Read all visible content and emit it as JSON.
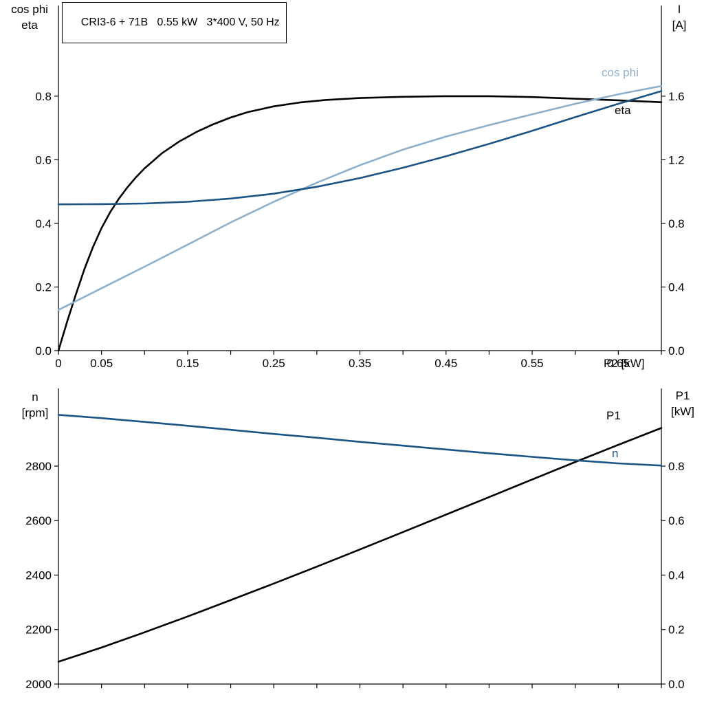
{
  "colors": {
    "curve_black": "#000000",
    "curve_dark_blue": "#1b5484",
    "curve_light_blue": "#8cafcb",
    "axis": "#000000",
    "text": "#000000"
  },
  "chart_data": [
    {
      "type": "line",
      "title": "CRI3-6 + 71B   0.55 kW   3*400 V, 50 Hz",
      "grid": false,
      "legend": "curve labels inline",
      "x_axis": {
        "label": "P2 [kW]",
        "min": 0,
        "max": 0.7,
        "tick_step": 0.05,
        "tick_labels": [
          {
            "v": 0,
            "t": "0"
          },
          {
            "v": 0.05,
            "t": "0.05"
          },
          {
            "v": 0.15,
            "t": "0.15"
          },
          {
            "v": 0.25,
            "t": "0.25"
          },
          {
            "v": 0.35,
            "t": "0.35"
          },
          {
            "v": 0.45,
            "t": "0.45"
          },
          {
            "v": 0.55,
            "t": "0.55"
          },
          {
            "v": 0.65,
            "t": "0.65"
          }
        ]
      },
      "left_axis": {
        "title_lines": [
          "cos phi",
          "eta"
        ],
        "min": 0,
        "max": 1.085,
        "tick_labels": [
          {
            "v": 0.0,
            "t": "0.0"
          },
          {
            "v": 0.2,
            "t": "0.2"
          },
          {
            "v": 0.4,
            "t": "0.4"
          },
          {
            "v": 0.6,
            "t": "0.6"
          },
          {
            "v": 0.8,
            "t": "0.8"
          }
        ]
      },
      "right_axis": {
        "title_lines": [
          "I",
          "[A]"
        ],
        "min": 0,
        "max": 2.17,
        "tick_labels": [
          {
            "v": 0.0,
            "t": "0.0"
          },
          {
            "v": 0.4,
            "t": "0.4"
          },
          {
            "v": 0.8,
            "t": "0.8"
          },
          {
            "v": 1.2,
            "t": "1.2"
          },
          {
            "v": 1.6,
            "t": "1.6"
          }
        ]
      },
      "series": [
        {
          "name": "eta",
          "label": "eta",
          "axis": "left",
          "color_key": "curve_black",
          "points": [
            [
              0,
              0
            ],
            [
              0.01,
              0.09
            ],
            [
              0.02,
              0.175
            ],
            [
              0.03,
              0.255
            ],
            [
              0.04,
              0.325
            ],
            [
              0.05,
              0.385
            ],
            [
              0.06,
              0.435
            ],
            [
              0.07,
              0.477
            ],
            [
              0.08,
              0.513
            ],
            [
              0.09,
              0.545
            ],
            [
              0.1,
              0.573
            ],
            [
              0.12,
              0.62
            ],
            [
              0.14,
              0.657
            ],
            [
              0.16,
              0.687
            ],
            [
              0.18,
              0.712
            ],
            [
              0.2,
              0.733
            ],
            [
              0.22,
              0.75
            ],
            [
              0.25,
              0.768
            ],
            [
              0.28,
              0.78
            ],
            [
              0.31,
              0.788
            ],
            [
              0.35,
              0.794
            ],
            [
              0.4,
              0.798
            ],
            [
              0.45,
              0.8
            ],
            [
              0.5,
              0.8
            ],
            [
              0.55,
              0.797
            ],
            [
              0.6,
              0.792
            ],
            [
              0.65,
              0.787
            ],
            [
              0.7,
              0.781
            ]
          ]
        },
        {
          "name": "cos phi",
          "label": "cos phi",
          "axis": "left",
          "color_key": "curve_light_blue",
          "points": [
            [
              0,
              0.128
            ],
            [
              0.05,
              0.196
            ],
            [
              0.1,
              0.264
            ],
            [
              0.15,
              0.333
            ],
            [
              0.2,
              0.403
            ],
            [
              0.25,
              0.468
            ],
            [
              0.3,
              0.528
            ],
            [
              0.35,
              0.583
            ],
            [
              0.4,
              0.632
            ],
            [
              0.45,
              0.673
            ],
            [
              0.5,
              0.709
            ],
            [
              0.55,
              0.743
            ],
            [
              0.6,
              0.776
            ],
            [
              0.65,
              0.806
            ],
            [
              0.7,
              0.832
            ]
          ]
        },
        {
          "name": "I",
          "label": "I",
          "axis": "right",
          "color_key": "curve_dark_blue",
          "points": [
            [
              0,
              0.92
            ],
            [
              0.05,
              0.921
            ],
            [
              0.1,
              0.925
            ],
            [
              0.15,
              0.936
            ],
            [
              0.2,
              0.956
            ],
            [
              0.25,
              0.987
            ],
            [
              0.3,
              1.03
            ],
            [
              0.35,
              1.085
            ],
            [
              0.4,
              1.15
            ],
            [
              0.45,
              1.222
            ],
            [
              0.5,
              1.3
            ],
            [
              0.55,
              1.382
            ],
            [
              0.6,
              1.468
            ],
            [
              0.65,
              1.552
            ],
            [
              0.7,
              1.632
            ]
          ]
        }
      ]
    },
    {
      "type": "line",
      "title": "",
      "grid": false,
      "legend": "curve labels inline",
      "x_axis": {
        "label": "",
        "min": 0,
        "max": 0.7,
        "tick_step": 0.05,
        "tick_labels": []
      },
      "left_axis": {
        "title_lines": [
          "n",
          "[rpm]"
        ],
        "min": 2000,
        "max": 3085,
        "tick_labels": [
          {
            "v": 2000,
            "t": "2000"
          },
          {
            "v": 2200,
            "t": "2200"
          },
          {
            "v": 2400,
            "t": "2400"
          },
          {
            "v": 2600,
            "t": "2600"
          },
          {
            "v": 2800,
            "t": "2800"
          }
        ]
      },
      "right_axis": {
        "title_lines": [
          "P1",
          "[kW]"
        ],
        "min": 0,
        "max": 1.085,
        "tick_labels": [
          {
            "v": 0.0,
            "t": "0.0"
          },
          {
            "v": 0.2,
            "t": "0.2"
          },
          {
            "v": 0.4,
            "t": "0.4"
          },
          {
            "v": 0.6,
            "t": "0.6"
          },
          {
            "v": 0.8,
            "t": "0.8"
          }
        ]
      },
      "series": [
        {
          "name": "P1",
          "label": "P1",
          "axis": "right",
          "color_key": "curve_black",
          "points": [
            [
              0,
              0.082
            ],
            [
              0.05,
              0.134
            ],
            [
              0.1,
              0.19
            ],
            [
              0.15,
              0.248
            ],
            [
              0.2,
              0.308
            ],
            [
              0.25,
              0.369
            ],
            [
              0.3,
              0.431
            ],
            [
              0.35,
              0.494
            ],
            [
              0.4,
              0.558
            ],
            [
              0.45,
              0.622
            ],
            [
              0.5,
              0.686
            ],
            [
              0.55,
              0.751
            ],
            [
              0.6,
              0.815
            ],
            [
              0.65,
              0.878
            ],
            [
              0.7,
              0.94
            ]
          ]
        },
        {
          "name": "n",
          "label": "n",
          "axis": "left",
          "color_key": "curve_dark_blue",
          "points": [
            [
              0,
              2988
            ],
            [
              0.05,
              2976
            ],
            [
              0.1,
              2962
            ],
            [
              0.15,
              2948
            ],
            [
              0.2,
              2933
            ],
            [
              0.25,
              2918
            ],
            [
              0.3,
              2904
            ],
            [
              0.35,
              2889
            ],
            [
              0.4,
              2875
            ],
            [
              0.45,
              2861
            ],
            [
              0.5,
              2847
            ],
            [
              0.55,
              2834
            ],
            [
              0.6,
              2821
            ],
            [
              0.65,
              2810
            ],
            [
              0.7,
              2802
            ]
          ]
        }
      ]
    }
  ]
}
